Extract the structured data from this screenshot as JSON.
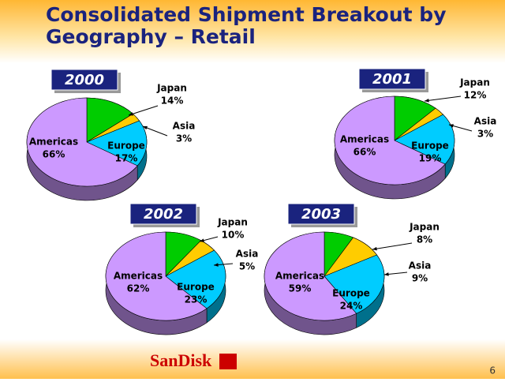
{
  "title_lines": [
    "Consolidated Shipment Breakout by",
    "Geography – Retail"
  ],
  "logo": "SanDisk",
  "page_number": "6",
  "chart_data": [
    {
      "type": "pie",
      "title": "2000",
      "categories": [
        "Japan",
        "Asia",
        "Europe",
        "Americas"
      ],
      "values": [
        14,
        3,
        17,
        66
      ],
      "value_labels": [
        "14%",
        "3%",
        "17%",
        "66%"
      ],
      "colors": [
        "#00cc00",
        "#ffcc00",
        "#00ccff",
        "#cc99ff"
      ]
    },
    {
      "type": "pie",
      "title": "2001",
      "categories": [
        "Japan",
        "Asia",
        "Europe",
        "Americas"
      ],
      "values": [
        12,
        3,
        19,
        66
      ],
      "value_labels": [
        "12%",
        "3%",
        "19%",
        "66%"
      ],
      "colors": [
        "#00cc00",
        "#ffcc00",
        "#00ccff",
        "#cc99ff"
      ]
    },
    {
      "type": "pie",
      "title": "2002",
      "categories": [
        "Japan",
        "Asia",
        "Europe",
        "Americas"
      ],
      "values": [
        10,
        5,
        23,
        62
      ],
      "value_labels": [
        "10%",
        "5%",
        "23%",
        "62%"
      ],
      "colors": [
        "#00cc00",
        "#ffcc00",
        "#00ccff",
        "#cc99ff"
      ]
    },
    {
      "type": "pie",
      "title": "2003",
      "categories": [
        "Japan",
        "Asia",
        "Europe",
        "Americas"
      ],
      "values": [
        8,
        9,
        24,
        59
      ],
      "value_labels": [
        "8%",
        "9%",
        "24%",
        "59%"
      ],
      "colors": [
        "#00cc00",
        "#ffcc00",
        "#00ccff",
        "#cc99ff"
      ]
    }
  ]
}
